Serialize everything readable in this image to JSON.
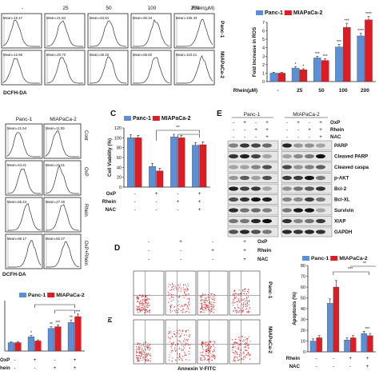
{
  "panelA": {
    "col_headers": [
      "-",
      "25",
      "50",
      "100",
      "200"
    ],
    "rhein_header": "Rhein(μM)",
    "row_labels": [
      "Panc-1",
      "MIAPaCa-2"
    ],
    "row1_means": [
      "Mean=16.17",
      "Mean=41.84",
      "Mean=63.84",
      "Mean=90.34",
      "Mean=106.43"
    ],
    "row2_means": [
      "Mean=12.86",
      "Mean=20.73",
      "Mean=35.18",
      "Mean=55.82",
      "Mean=110.41"
    ],
    "xlabel": "DCFH-DA"
  },
  "panelB": {
    "row_labels": [
      "Cont",
      "OxP",
      "Rhein",
      "OxP+Rhein"
    ],
    "col_headers": [
      "Panc-1",
      "MIAPaCa-2"
    ],
    "means": [
      [
        "Mean=21.54",
        "Mean=11.09"
      ],
      [
        "Mean=44.21",
        "Mean=15.61"
      ],
      [
        "Mean=65.43",
        "Mean=27.45"
      ],
      [
        "Mean=96.17",
        "Mean=50.27"
      ]
    ],
    "xlabel": "DCFH-DA"
  },
  "panelE": {
    "label": "E",
    "groups": [
      "Panc-1",
      "MIAPaCa-2"
    ],
    "treatments": [
      {
        "name": "OxP",
        "signs": [
          "-",
          "+",
          "-",
          "+",
          "-",
          "+",
          "-",
          "+"
        ]
      },
      {
        "name": "Rhein",
        "signs": [
          "-",
          "-",
          "+",
          "+",
          "-",
          "-",
          "+",
          "+"
        ]
      },
      {
        "name": "NAC",
        "signs": [
          "-",
          "-",
          "-",
          "+",
          "-",
          "-",
          "-",
          "+"
        ]
      }
    ],
    "proteins": [
      "PARP",
      "Cleaved PARP",
      "Cleaved caspa",
      "p-AKT",
      "Bcl-2",
      "Bcl-XL",
      "Survivin",
      "XIAP",
      "GAPDH"
    ]
  },
  "panelD": {
    "label": "D",
    "treatments": [
      {
        "name": "OxP",
        "signs": [
          "-",
          "+",
          "-",
          "+"
        ]
      },
      {
        "name": "Rhein",
        "signs": [
          "-",
          "-",
          "+",
          "+"
        ]
      },
      {
        "name": "NAC",
        "signs": [
          "-",
          "-",
          "-",
          "+"
        ]
      }
    ],
    "row_labels": [
      "Panc-1",
      "MIAPaCa-2"
    ],
    "ylabel": "PI",
    "xlabel": "Annexin V-FITC"
  },
  "colors": {
    "panc1": "#5b8fd6",
    "miapaca2": "#e01b24",
    "facs": "#d6282a"
  },
  "chart_data": [
    {
      "type": "bar",
      "title": "",
      "ylabel": "Fold increase in ROS",
      "xlabel": "Rhein(μM)",
      "categories": [
        "-",
        "25",
        "50",
        "100",
        "200"
      ],
      "ylim": [
        0,
        7
      ],
      "yticks": [
        "0",
        "1",
        "2",
        "3",
        "4",
        "5",
        "6",
        "7"
      ],
      "series": [
        {
          "name": "Panc-1",
          "values": [
            1.0,
            1.6,
            2.8,
            4.1,
            5.4
          ],
          "err": [
            0.1,
            0.15,
            0.2,
            0.3,
            0.3
          ]
        },
        {
          "name": "MIAPaCa-2",
          "values": [
            1.0,
            1.4,
            2.5,
            6.4,
            7.3
          ],
          "err": [
            0.1,
            0.12,
            0.2,
            0.5,
            0.4
          ]
        }
      ],
      "sig": [
        "",
        "*",
        "***",
        "***",
        "****"
      ]
    },
    {
      "type": "bar",
      "label": "C",
      "ylabel": "Cell Viability (%)",
      "categories": [
        "1",
        "2",
        "3",
        "4"
      ],
      "ylim": [
        0,
        120
      ],
      "yticks": [
        "0",
        "20",
        "40",
        "60",
        "80",
        "100",
        "120"
      ],
      "series": [
        {
          "name": "Panc-1",
          "values": [
            100,
            42,
            102,
            85
          ],
          "err": [
            6,
            6,
            5,
            5
          ]
        },
        {
          "name": "MIAPaCa-2",
          "values": [
            100,
            33,
            100,
            86
          ],
          "err": [
            5,
            5,
            5,
            6
          ]
        }
      ],
      "treatments": [
        {
          "name": "OxP",
          "signs": [
            "-",
            "+",
            "-",
            "+"
          ]
        },
        {
          "name": "Rhein",
          "signs": [
            "-",
            "-",
            "+",
            "+"
          ]
        },
        {
          "name": "NAC",
          "signs": [
            "-",
            "-",
            "-",
            "+"
          ]
        }
      ],
      "sig": [
        "**"
      ]
    },
    {
      "type": "bar",
      "ylabel": "Apoptosis (%)",
      "categories": [
        "1",
        "2",
        "3",
        "4"
      ],
      "ylim": [
        0,
        80
      ],
      "yticks": [
        "0",
        "10",
        "20",
        "30",
        "40",
        "50",
        "60",
        "70",
        "80"
      ],
      "series": [
        {
          "name": "Panc-1",
          "values": [
            10,
            45,
            11,
            17
          ],
          "err": [
            2,
            4,
            2,
            2
          ]
        },
        {
          "name": "MIAPaCa-2",
          "values": [
            13,
            60,
            13,
            15
          ],
          "err": [
            2,
            6,
            2,
            2
          ]
        }
      ],
      "treatments": [
        {
          "name": "Rhein",
          "signs": [
            "-",
            "-",
            "+",
            "+"
          ]
        },
        {
          "name": "NAC",
          "signs": [
            "-",
            "-",
            "-",
            "+"
          ]
        }
      ],
      "sig": [
        "***",
        "**",
        "***"
      ]
    },
    {
      "type": "bar",
      "categories": [
        "1",
        "2",
        "3",
        "4"
      ],
      "ylim": [
        0,
        6
      ],
      "series": [
        {
          "name": "Panc-1",
          "values": [
            1.0,
            1.7,
            2.7,
            3.4
          ],
          "err": [
            0.1,
            0.15,
            0.2,
            0.3
          ]
        },
        {
          "name": "MIAPaCa-2",
          "values": [
            1.0,
            1.2,
            2.9,
            4.1
          ],
          "err": [
            0.1,
            0.12,
            0.2,
            0.3
          ]
        }
      ],
      "legend": [
        "Panc-1",
        "MIAPaCa-2"
      ],
      "treatments": [
        {
          "name": "OxP",
          "signs": [
            "-",
            "+",
            "-",
            "+"
          ]
        },
        {
          "name": "hein",
          "signs": [
            "-",
            "-",
            "+",
            "+"
          ]
        }
      ],
      "sig": [
        "*",
        "**",
        "***",
        "**",
        "***"
      ]
    }
  ]
}
